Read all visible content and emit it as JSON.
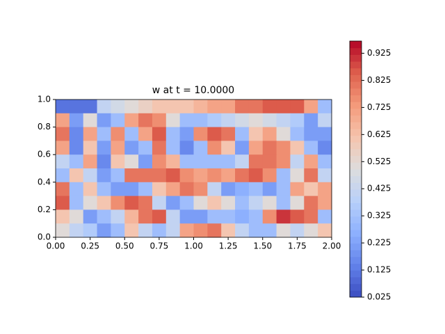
{
  "chart_data": {
    "type": "contourf",
    "title": "w at t = 10.0000",
    "colormap": "coolwarm",
    "xlim": [
      0,
      2
    ],
    "ylim": [
      0,
      1
    ],
    "xticks": [
      {
        "value": 0,
        "label": "0.00"
      },
      {
        "value": 0.25,
        "label": "0.25"
      },
      {
        "value": 0.5,
        "label": "0.50"
      },
      {
        "value": 0.75,
        "label": "0.75"
      },
      {
        "value": 1,
        "label": "1.00"
      },
      {
        "value": 1.25,
        "label": "1.25"
      },
      {
        "value": 1.5,
        "label": "1.50"
      },
      {
        "value": 1.75,
        "label": "1.75"
      },
      {
        "value": 2,
        "label": "2.00"
      }
    ],
    "yticks": [
      {
        "value": 0,
        "label": "0.0"
      },
      {
        "value": 0.2,
        "label": "0.2"
      },
      {
        "value": 0.4,
        "label": "0.4"
      },
      {
        "value": 0.6,
        "label": "0.6"
      },
      {
        "value": 0.8,
        "label": "0.8"
      },
      {
        "value": 1,
        "label": "1.0"
      }
    ],
    "clim": [
      0.025,
      0.97
    ],
    "cticks": [
      0.025,
      0.125,
      0.225,
      0.325,
      0.425,
      0.525,
      0.625,
      0.725,
      0.825,
      0.925
    ],
    "z": [
      [
        0.1,
        0.1,
        0.1,
        0.4,
        0.45,
        0.5,
        0.55,
        0.6,
        0.6,
        0.6,
        0.65,
        0.7,
        0.7,
        0.8,
        0.8,
        0.85,
        0.85,
        0.85,
        0.7,
        0.3
      ],
      [
        0.7,
        0.2,
        0.5,
        0.2,
        0.3,
        0.7,
        0.8,
        0.75,
        0.5,
        0.3,
        0.3,
        0.35,
        0.4,
        0.45,
        0.5,
        0.45,
        0.4,
        0.35,
        0.2,
        0.4
      ],
      [
        0.8,
        0.15,
        0.7,
        0.3,
        0.75,
        0.3,
        0.7,
        0.85,
        0.3,
        0.2,
        0.75,
        0.85,
        0.8,
        0.3,
        0.6,
        0.7,
        0.5,
        0.3,
        0.2,
        0.2
      ],
      [
        0.7,
        0.15,
        0.6,
        0.2,
        0.7,
        0.2,
        0.3,
        0.8,
        0.3,
        0.15,
        0.3,
        0.75,
        0.6,
        0.2,
        0.7,
        0.8,
        0.75,
        0.6,
        0.3,
        0.15
      ],
      [
        0.4,
        0.3,
        0.7,
        0.15,
        0.6,
        0.5,
        0.2,
        0.75,
        0.65,
        0.3,
        0.3,
        0.3,
        0.3,
        0.4,
        0.8,
        0.8,
        0.75,
        0.4,
        0.7,
        0.3
      ],
      [
        0.3,
        0.6,
        0.4,
        0.2,
        0.3,
        0.8,
        0.8,
        0.8,
        0.85,
        0.75,
        0.7,
        0.75,
        0.7,
        0.8,
        0.85,
        0.75,
        0.3,
        0.5,
        0.8,
        0.4
      ],
      [
        0.8,
        0.3,
        0.6,
        0.3,
        0.2,
        0.2,
        0.3,
        0.6,
        0.7,
        0.8,
        0.75,
        0.4,
        0.2,
        0.25,
        0.3,
        0.2,
        0.3,
        0.7,
        0.6,
        0.7
      ],
      [
        0.85,
        0.3,
        0.5,
        0.6,
        0.75,
        0.85,
        0.8,
        0.4,
        0.2,
        0.3,
        0.5,
        0.6,
        0.5,
        0.3,
        0.4,
        0.5,
        0.3,
        0.5,
        0.8,
        0.7
      ],
      [
        0.6,
        0.5,
        0.2,
        0.3,
        0.4,
        0.65,
        0.8,
        0.85,
        0.4,
        0.2,
        0.2,
        0.3,
        0.3,
        0.25,
        0.3,
        0.75,
        0.9,
        0.85,
        0.8,
        0.3
      ],
      [
        0.5,
        0.4,
        0.35,
        0.2,
        0.3,
        0.6,
        0.4,
        0.3,
        0.4,
        0.7,
        0.75,
        0.8,
        0.6,
        0.4,
        0.3,
        0.3,
        0.5,
        0.4,
        0.5,
        0.6
      ]
    ]
  }
}
